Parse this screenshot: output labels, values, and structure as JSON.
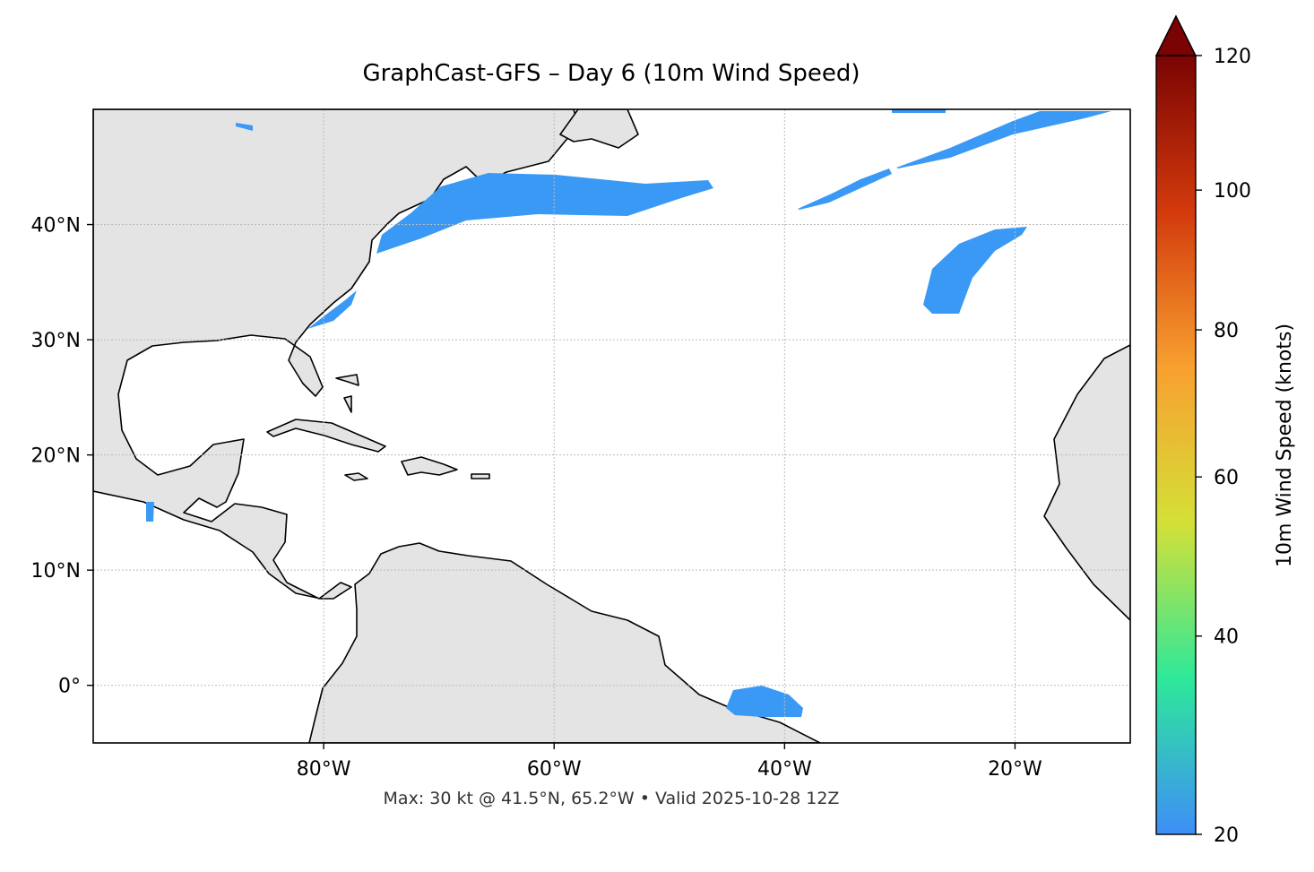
{
  "chart_data": {
    "type": "map",
    "title": "GraphCast-GFS – Day 6 (10m Wind Speed)",
    "annotation": "Max: 30 kt @ 41.5°N, 65.2°W • Valid 2025-10-28 12Z",
    "xlim": [
      -100,
      -10
    ],
    "ylim": [
      -5,
      50
    ],
    "xticks": [
      {
        "value": -80,
        "label": "80°W"
      },
      {
        "value": -60,
        "label": "60°W"
      },
      {
        "value": -40,
        "label": "40°W"
      },
      {
        "value": -20,
        "label": "20°W"
      }
    ],
    "yticks": [
      {
        "value": 0,
        "label": "0°"
      },
      {
        "value": 10,
        "label": "10°N"
      },
      {
        "value": 20,
        "label": "20°N"
      },
      {
        "value": 30,
        "label": "30°N"
      },
      {
        "value": 40,
        "label": "40°N"
      }
    ],
    "grid": true,
    "colorbar": {
      "label": "10m Wind Speed (knots)",
      "lim": [
        20,
        120
      ],
      "ticks": [
        20,
        40,
        60,
        80,
        100,
        120
      ],
      "power": 0.85,
      "extend": "max",
      "colormap": [
        "#3e8ef7",
        "#2ee89a",
        "#d4e036",
        "#f8a030",
        "#d33a0c",
        "#7a0403"
      ]
    }
  }
}
